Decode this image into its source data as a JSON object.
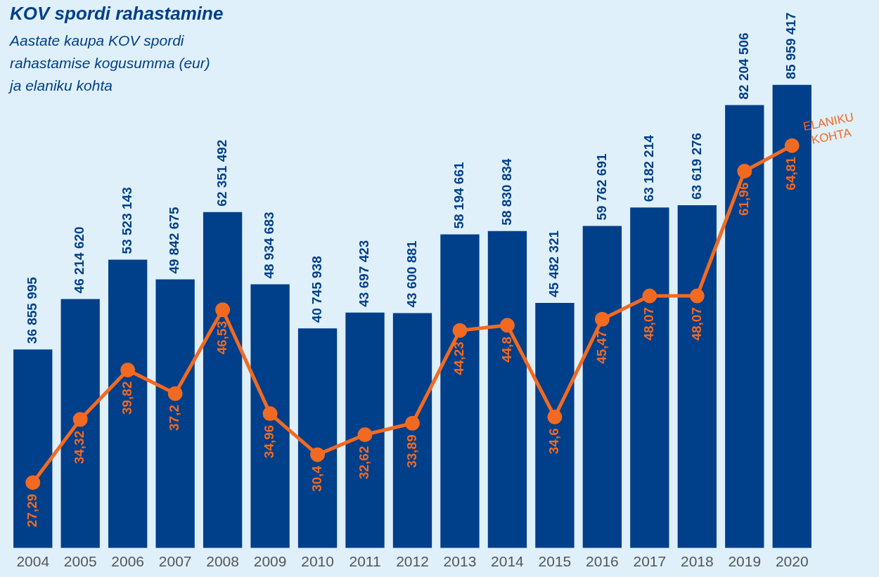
{
  "chart_data": {
    "type": "bar",
    "title": "KOV spordi rahastamine",
    "subtitle": "Aastate kaupa KOV spordi rahastamise kogusumma (eur) ja elaniku kohta",
    "categories": [
      "2004",
      "2005",
      "2006",
      "2007",
      "2008",
      "2009",
      "2010",
      "2011",
      "2012",
      "2013",
      "2014",
      "2015",
      "2016",
      "2017",
      "2018",
      "2019",
      "2020"
    ],
    "series": [
      {
        "color": "#003f8a",
        "values": [
          36855995,
          46214620,
          53523143,
          49842675,
          62351492,
          48934683,
          40745938,
          43697423,
          43600881,
          58194661,
          58830834,
          45482321,
          59762691,
          63182214,
          63619276,
          82204506,
          85959417
        ],
        "value_labels": [
          "36 855 995",
          "46 214 620",
          "53 523 143",
          "49 842 675",
          "62 351 492",
          "48 934 683",
          "40 745 938",
          "43 697 423",
          "43 600 881",
          "58 194 661",
          "58 830 834",
          "45 482 321",
          "59 762 691",
          "63 182 214",
          "63 619 276",
          "82 204 506",
          "85 959 417"
        ]
      },
      {
        "type": "line",
        "name": "ELANIKU KOHTA",
        "axis": "y2",
        "color": "#f26a21",
        "values": [
          27.29,
          34.32,
          39.82,
          37.2,
          46.53,
          34.96,
          30.4,
          32.62,
          33.89,
          44.23,
          44.8,
          34.6,
          45.47,
          48.07,
          48.07,
          61.96,
          64.81
        ],
        "value_labels": [
          "27,29",
          "34,32",
          "39,82",
          "37,2",
          "46,53",
          "34,96",
          "30,4",
          "32,62",
          "33,89",
          "44,23",
          "44,8",
          "34,6",
          "45,47",
          "48,07",
          "48,07",
          "61,96",
          "64,81"
        ]
      }
    ],
    "marker": "circle",
    "legend": false,
    "grid": false
  }
}
